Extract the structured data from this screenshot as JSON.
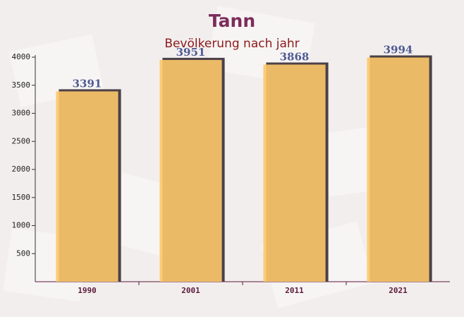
{
  "chart_data": {
    "type": "bar",
    "title": "Tann",
    "subtitle": "Bevölkerung nach jahr",
    "categories": [
      "1990",
      "2001",
      "2011",
      "2021"
    ],
    "values": [
      3391,
      3951,
      3868,
      3994
    ],
    "color": "#fdc869",
    "ylim": [
      0,
      4000
    ],
    "yticks": [
      500,
      1000,
      1500,
      2000,
      2500,
      3000,
      3500,
      4000
    ],
    "grid": false
  }
}
